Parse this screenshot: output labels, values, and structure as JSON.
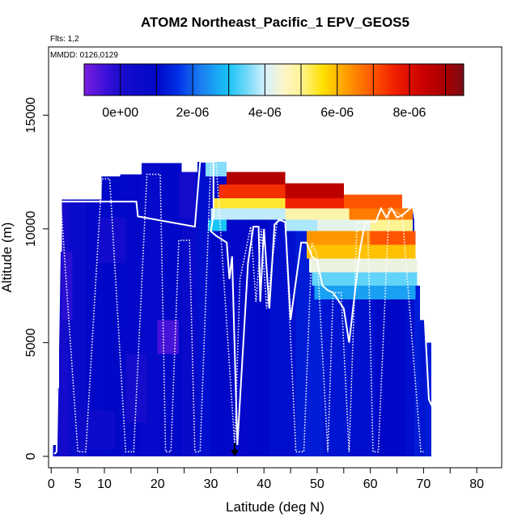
{
  "chart_data": {
    "type": "heatmap",
    "title": "ATOM2 Northeast_Pacific_1 EPV_GEOS5",
    "subtitle_flights": "Flts: 1,2",
    "subtitle_dates": "MMDD: 0126,0129",
    "xlabel": "Latitude (deg N)",
    "ylabel": "Altitude (m)",
    "xlim": [
      -0.5,
      84.7
    ],
    "ylim": [
      -500,
      18000
    ],
    "x_ticks": [
      0,
      5,
      10,
      20,
      30,
      40,
      50,
      60,
      70,
      80
    ],
    "x_tick_labels": [
      "0",
      "5",
      "10",
      "20",
      "30",
      "40",
      "50",
      "60",
      "70",
      "80"
    ],
    "x_minor_ticks": [
      15,
      25,
      35,
      45,
      55,
      65,
      75,
      85
    ],
    "y_ticks": [
      0,
      5000,
      10000,
      15000
    ],
    "y_tick_labels": [
      "0",
      "5000",
      "10000",
      "15000"
    ],
    "colorbar": {
      "range": [
        -1e-06,
        9.5e-06
      ],
      "tick_values": [
        0,
        2e-06,
        4e-06,
        6e-06,
        8e-06
      ],
      "tick_labels": [
        "0e+00",
        "2e-06",
        "4e-06",
        "6e-06",
        "8e-06"
      ],
      "segment_edges": [
        -1e-06,
        0,
        1e-06,
        2e-06,
        3e-06,
        4e-06,
        5e-06,
        6e-06,
        7e-06,
        8e-06,
        9e-06,
        9.5e-06
      ],
      "color_stops": [
        {
          "v": -1e-06,
          "c": "#7b1fe0"
        },
        {
          "v": -4e-07,
          "c": "#3b10d8"
        },
        {
          "v": 0.0,
          "c": "#1a0ccc"
        },
        {
          "v": 1e-06,
          "c": "#0008c8"
        },
        {
          "v": 1.6e-06,
          "c": "#0030e6"
        },
        {
          "v": 2.2e-06,
          "c": "#1a7cf0"
        },
        {
          "v": 3e-06,
          "c": "#19c4f6"
        },
        {
          "v": 3.6e-06,
          "c": "#86dcfa"
        },
        {
          "v": 4e-06,
          "c": "#d4f1fc"
        },
        {
          "v": 4.5e-06,
          "c": "#fbf5cd"
        },
        {
          "v": 5e-06,
          "c": "#fff394"
        },
        {
          "v": 5.6e-06,
          "c": "#ffe100"
        },
        {
          "v": 6.2e-06,
          "c": "#ffa200"
        },
        {
          "v": 7e-06,
          "c": "#ff5400"
        },
        {
          "v": 7.6e-06,
          "c": "#f01e00"
        },
        {
          "v": 8.4e-06,
          "c": "#c80000"
        },
        {
          "v": 9e-06,
          "c": "#a80000"
        },
        {
          "v": 9.5e-06,
          "c": "#7a0d16"
        }
      ]
    },
    "bg_value": 1e-06,
    "field_columns": [
      {
        "x0": 0.3,
        "x1": 1.0,
        "top": 500,
        "value": 9e-07
      },
      {
        "x0": 1.0,
        "x1": 1.5,
        "top": 3000,
        "value": 4e-07
      },
      {
        "x0": 1.5,
        "x1": 2.0,
        "top": 9000,
        "value": 3e-07
      },
      {
        "x0": 2.0,
        "x1": 3.2,
        "top": 11300,
        "value": 2e-07
      },
      {
        "x0": 3.2,
        "x1": 6.5,
        "top": 11300,
        "value": 6e-07
      },
      {
        "x0": 6.5,
        "x1": 9.5,
        "top": 11300,
        "value": 9e-07
      },
      {
        "x0": 9.5,
        "x1": 13.0,
        "top": 12300,
        "value": 1e-06
      },
      {
        "x0": 13.0,
        "x1": 17.0,
        "top": 12400,
        "value": 9e-07
      },
      {
        "x0": 17.0,
        "x1": 20.5,
        "top": 12900,
        "value": 8e-07
      },
      {
        "x0": 20.5,
        "x1": 24.5,
        "top": 12900,
        "value": 1e-06
      },
      {
        "x0": 24.5,
        "x1": 27.5,
        "top": 12500,
        "value": 7e-07
      },
      {
        "x0": 27.5,
        "x1": 30.0,
        "top": 12950,
        "value": 1.1e-06
      },
      {
        "x0": 30.0,
        "x1": 33.0,
        "top": 12950,
        "value": 1e-06
      },
      {
        "x0": 33.0,
        "x1": 37.0,
        "top": 12000,
        "value": 9e-07
      },
      {
        "x0": 37.0,
        "x1": 41.0,
        "top": 12000,
        "value": 1e-06
      },
      {
        "x0": 41.0,
        "x1": 46.0,
        "top": 12000,
        "value": 1.1e-06
      },
      {
        "x0": 46.0,
        "x1": 51.0,
        "top": 11500,
        "value": 1.3e-06
      },
      {
        "x0": 51.0,
        "x1": 56.0,
        "top": 11300,
        "value": 1.2e-06
      },
      {
        "x0": 56.0,
        "x1": 61.0,
        "top": 10900,
        "value": 1.1e-06
      },
      {
        "x0": 61.0,
        "x1": 66.5,
        "top": 10900,
        "value": 1e-06
      },
      {
        "x0": 66.5,
        "x1": 68.3,
        "top": 10900,
        "value": 1.1e-06
      },
      {
        "x0": 68.3,
        "x1": 69.3,
        "top": 7500,
        "value": 1.3e-06
      },
      {
        "x0": 69.3,
        "x1": 70.3,
        "top": 6000,
        "value": 1.2e-06
      },
      {
        "x0": 70.3,
        "x1": 71.5,
        "top": 5000,
        "value": 1.3e-06
      }
    ],
    "field_patches": [
      {
        "x0": 9,
        "x1": 14,
        "y0": 8500,
        "y1": 10500,
        "value": 3e-07
      },
      {
        "x0": 20,
        "x1": 24,
        "y0": 4500,
        "y1": 6000,
        "value": -5e-07
      },
      {
        "x0": 2,
        "x1": 4,
        "y0": 6000,
        "y1": 9000,
        "value": -2e-07
      },
      {
        "x0": 14,
        "x1": 18,
        "y0": 1500,
        "y1": 4500,
        "value": 2e-07
      },
      {
        "x0": 24,
        "x1": 27,
        "y0": 10500,
        "y1": 12500,
        "value": 2e-07
      },
      {
        "x0": 5,
        "x1": 12,
        "y0": 300,
        "y1": 2000,
        "value": 5e-07
      }
    ],
    "stratospheric_layers": [
      {
        "x0": 29.0,
        "x1": 33.0,
        "y0": 12300,
        "y1": 12950,
        "value": 3.6e-06
      },
      {
        "x0": 33.0,
        "x1": 44.0,
        "y0": 11950,
        "y1": 12500,
        "value": 8.8e-06
      },
      {
        "x0": 44.0,
        "x1": 55.0,
        "y0": 11350,
        "y1": 12000,
        "value": 8.6e-06
      },
      {
        "x0": 31.5,
        "x1": 44.0,
        "y0": 11350,
        "y1": 11950,
        "value": 7.4e-06
      },
      {
        "x0": 44.0,
        "x1": 55.0,
        "y0": 10900,
        "y1": 11350,
        "value": 7.6e-06
      },
      {
        "x0": 55.0,
        "x1": 66.0,
        "y0": 10900,
        "y1": 11500,
        "value": 7e-06
      },
      {
        "x0": 30.5,
        "x1": 44.0,
        "y0": 10900,
        "y1": 11350,
        "value": 5.4e-06
      },
      {
        "x0": 30.0,
        "x1": 44.0,
        "y0": 10400,
        "y1": 10900,
        "value": 3.9e-06
      },
      {
        "x0": 44.0,
        "x1": 56.0,
        "y0": 10400,
        "y1": 10900,
        "value": 4.8e-06
      },
      {
        "x0": 56.0,
        "x1": 68.0,
        "y0": 10400,
        "y1": 10900,
        "value": 6.6e-06
      },
      {
        "x0": 29.5,
        "x1": 33.0,
        "y0": 9900,
        "y1": 10400,
        "value": 3e-06
      },
      {
        "x0": 44.0,
        "x1": 50.0,
        "y0": 9900,
        "y1": 10400,
        "value": 3.8e-06
      },
      {
        "x0": 50.0,
        "x1": 60.0,
        "y0": 9900,
        "y1": 10400,
        "value": 4.2e-06
      },
      {
        "x0": 60.0,
        "x1": 68.0,
        "y0": 9900,
        "y1": 10400,
        "value": 5e-06
      },
      {
        "x0": 48.0,
        "x1": 60.0,
        "y0": 9300,
        "y1": 9900,
        "value": 6.3e-06
      },
      {
        "x0": 60.0,
        "x1": 68.5,
        "y0": 9300,
        "y1": 9900,
        "value": 7e-06
      },
      {
        "x0": 48.0,
        "x1": 68.5,
        "y0": 8700,
        "y1": 9300,
        "value": 5.9e-06
      },
      {
        "x0": 48.5,
        "x1": 68.8,
        "y0": 8100,
        "y1": 8700,
        "value": 4.3e-06
      },
      {
        "x0": 49.0,
        "x1": 68.8,
        "y0": 7500,
        "y1": 8100,
        "value": 3.4e-06
      },
      {
        "x0": 49.5,
        "x1": 68.5,
        "y0": 6900,
        "y1": 7500,
        "value": 2.6e-06
      }
    ],
    "flight_track_solid": [
      [
        0.6,
        100
      ],
      [
        1.0,
        200
      ],
      [
        1.8,
        11200
      ],
      [
        10.0,
        11200
      ],
      [
        16.0,
        11200
      ],
      [
        16.3,
        10550
      ],
      [
        27.0,
        10100
      ],
      [
        28.0,
        12950
      ],
      [
        30.5,
        12950
      ],
      [
        30.5,
        10600
      ],
      [
        30.0,
        9900
      ],
      [
        31.0,
        9700
      ],
      [
        33.0,
        9400
      ],
      [
        33.5,
        7800
      ],
      [
        34.0,
        8800
      ],
      [
        35.0,
        500
      ],
      [
        36.0,
        4500
      ],
      [
        37.0,
        8500
      ],
      [
        38.0,
        10100
      ],
      [
        39.0,
        10100
      ],
      [
        39.3,
        6800
      ],
      [
        40.0,
        10000
      ],
      [
        41.0,
        6500
      ],
      [
        42.0,
        10200
      ],
      [
        43.0,
        10400
      ],
      [
        44.0,
        10300
      ],
      [
        45.0,
        6000
      ],
      [
        47.0,
        9400
      ],
      [
        48.0,
        9400
      ],
      [
        49.0,
        8800
      ],
      [
        50.0,
        8600
      ],
      [
        51.0,
        7500
      ],
      [
        52.0,
        7300
      ],
      [
        53.0,
        7200
      ],
      [
        55.0,
        6500
      ],
      [
        56.0,
        5000
      ],
      [
        57.0,
        7000
      ],
      [
        58.0,
        9000
      ],
      [
        59.0,
        10300
      ],
      [
        61.0,
        10300
      ],
      [
        62.0,
        10900
      ],
      [
        63.0,
        10500
      ],
      [
        64.0,
        10900
      ],
      [
        65.0,
        10500
      ],
      [
        66.0,
        10600
      ],
      [
        68.0,
        11000
      ],
      [
        69.0,
        9500
      ],
      [
        70.0,
        7000
      ],
      [
        71.0,
        2500
      ],
      [
        72.0,
        2000
      ]
    ],
    "flight_track_dotted": [
      [
        1.8,
        11200
      ],
      [
        5.0,
        200
      ],
      [
        6.5,
        200
      ],
      [
        9.5,
        12200
      ],
      [
        11.0,
        12200
      ],
      [
        14.0,
        200
      ],
      [
        15.5,
        200
      ],
      [
        18.0,
        12400
      ],
      [
        20.5,
        12400
      ],
      [
        21.5,
        200
      ],
      [
        22.5,
        200
      ],
      [
        24.0,
        9500
      ],
      [
        26.0,
        9500
      ],
      [
        27.0,
        200
      ],
      [
        28.0,
        200
      ],
      [
        30.0,
        12950
      ],
      [
        31.0,
        12950
      ],
      [
        34.5,
        500
      ],
      [
        35.5,
        7800
      ],
      [
        37.5,
        10100
      ],
      [
        38.5,
        6800
      ],
      [
        39.5,
        10000
      ],
      [
        40.5,
        6500
      ],
      [
        42.5,
        10400
      ],
      [
        44.0,
        10300
      ],
      [
        46.0,
        200
      ],
      [
        47.5,
        200
      ],
      [
        49.0,
        9400
      ],
      [
        50.0,
        8800
      ],
      [
        52.0,
        200
      ],
      [
        53.0,
        7200
      ],
      [
        54.5,
        7200
      ],
      [
        56.0,
        200
      ],
      [
        57.5,
        10300
      ],
      [
        59.5,
        10300
      ],
      [
        60.5,
        200
      ],
      [
        61.5,
        200
      ],
      [
        63.5,
        10900
      ],
      [
        66.0,
        10600
      ],
      [
        69.5,
        200
      ],
      [
        70.0,
        200
      ]
    ],
    "marker": {
      "x": 34.5,
      "y0": 600,
      "y1": 0
    }
  }
}
